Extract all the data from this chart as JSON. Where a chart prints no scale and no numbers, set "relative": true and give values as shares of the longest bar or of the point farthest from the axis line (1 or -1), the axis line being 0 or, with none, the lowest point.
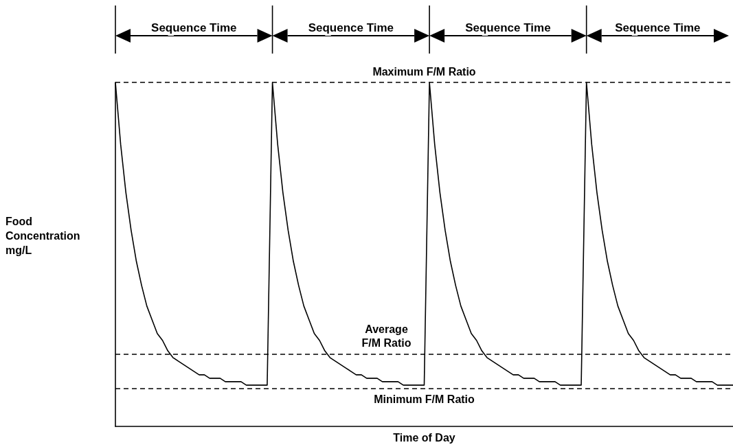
{
  "chart_data": {
    "type": "line",
    "relative": true,
    "xlabel": "Time of Day",
    "ylabel": "Food Concentration mg/L",
    "categories": [
      null,
      null,
      null,
      null,
      null,
      null,
      null,
      null,
      null,
      null,
      null,
      null,
      null,
      null,
      null,
      null,
      null,
      null,
      null,
      null,
      null,
      null,
      null,
      null,
      null,
      null,
      null,
      null,
      null,
      null,
      null,
      null,
      null,
      null,
      null,
      null,
      null,
      null,
      null,
      null,
      null,
      null,
      null,
      null,
      null,
      null,
      null,
      null,
      null,
      null,
      null,
      null,
      null,
      null,
      null,
      null,
      null,
      null,
      null,
      null,
      null,
      null,
      null,
      null,
      null,
      null,
      null,
      null,
      null,
      null,
      null,
      null,
      null,
      null,
      null,
      null,
      null,
      null,
      null,
      null,
      null,
      null,
      null,
      null,
      null,
      null,
      null,
      null,
      null,
      null,
      null,
      null,
      null,
      null,
      null,
      null,
      null,
      null,
      null,
      null,
      null,
      null,
      null,
      null,
      null,
      null,
      null,
      null,
      null,
      null,
      null,
      null,
      null,
      null,
      null,
      null,
      null,
      null,
      null
    ],
    "series": [
      {
        "color": "#000000",
        "values": [
          1.0,
          0.82,
          0.68,
          0.57,
          0.48,
          0.41,
          0.35,
          0.31,
          0.27,
          0.25,
          0.22,
          0.2,
          0.19,
          0.18,
          0.17,
          0.16,
          0.15,
          0.15,
          0.14,
          0.14,
          0.14,
          0.13,
          0.13,
          0.13,
          0.13,
          0.12,
          0.12,
          0.12,
          0.12,
          0.12,
          1.0,
          0.82,
          0.68,
          0.57,
          0.48,
          0.41,
          0.35,
          0.31,
          0.27,
          0.25,
          0.22,
          0.2,
          0.19,
          0.18,
          0.17,
          0.16,
          0.15,
          0.15,
          0.14,
          0.14,
          0.14,
          0.13,
          0.13,
          0.13,
          0.13,
          0.12,
          0.12,
          0.12,
          0.12,
          0.12,
          1.0,
          0.82,
          0.68,
          0.57,
          0.48,
          0.41,
          0.35,
          0.31,
          0.27,
          0.25,
          0.22,
          0.2,
          0.19,
          0.18,
          0.17,
          0.16,
          0.15,
          0.15,
          0.14,
          0.14,
          0.14,
          0.13,
          0.13,
          0.13,
          0.13,
          0.12,
          0.12,
          0.12,
          0.12,
          0.12,
          1.0,
          0.82,
          0.68,
          0.57,
          0.48,
          0.41,
          0.35,
          0.31,
          0.27,
          0.25,
          0.22,
          0.2,
          0.19,
          0.18,
          0.17,
          0.16,
          0.15,
          0.15,
          0.14,
          0.14,
          0.14,
          0.13,
          0.13,
          0.13,
          0.13,
          0.12,
          0.12,
          0.12,
          0.12
        ]
      }
    ],
    "ref_lines": [
      {
        "axis": "y",
        "value": 1.0,
        "label": "Maximum F/M Ratio",
        "color": "#000000",
        "line_style": "dashed"
      },
      {
        "axis": "y",
        "value": 0.21,
        "label": "Average\nF/M Ratio",
        "color": "#000000",
        "line_style": "dashed"
      },
      {
        "axis": "y",
        "value": 0.11,
        "label": "Minimum F/M Ratio",
        "color": "#000000",
        "line_style": "dashed"
      }
    ],
    "annotations": [
      "Sequence Time",
      "Sequence Time",
      "Sequence Time",
      "Sequence Time"
    ],
    "line_style": "solid",
    "grid": false,
    "tick_labels": false
  }
}
